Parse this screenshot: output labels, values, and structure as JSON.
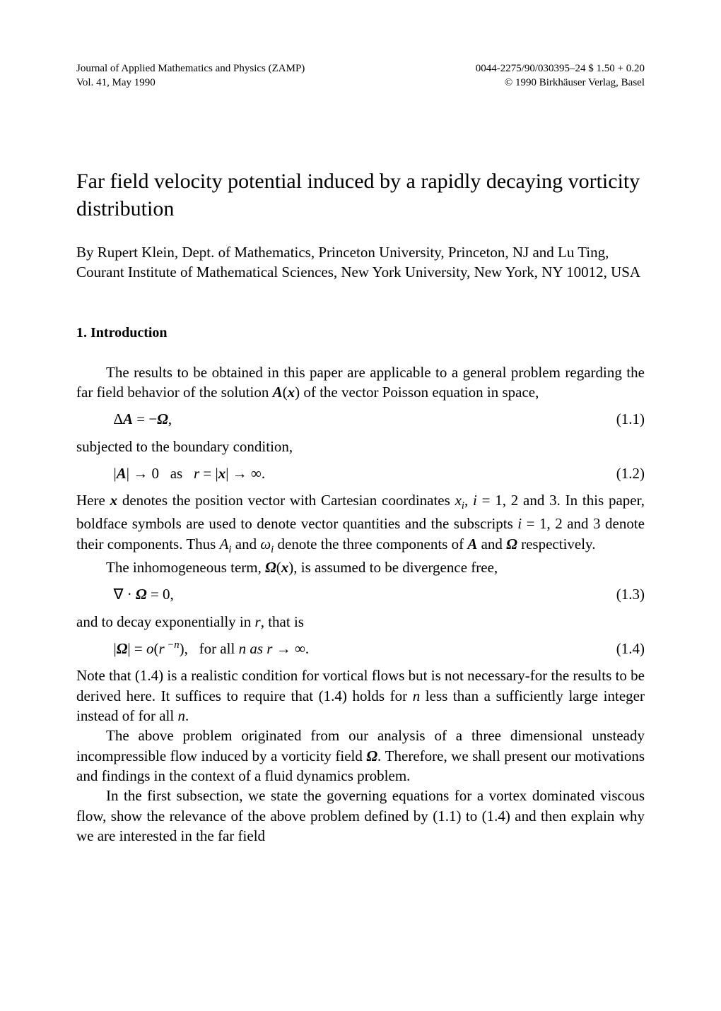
{
  "header": {
    "journal": "Journal of Applied Mathematics and Physics (ZAMP)",
    "vol": "Vol. 41, May 1990",
    "code": "0044-2275/90/030395–24 $ 1.50 + 0.20",
    "copyright": "© 1990 Birkhäuser Verlag, Basel"
  },
  "title": "Far field velocity potential induced by a rapidly decaying vorticity distribution",
  "authors": "By Rupert Klein, Dept. of Mathematics, Princeton University, Princeton, NJ and Lu Ting, Courant Institute of Mathematical Sciences, New York University, New York, NY 10012, USA",
  "section1_heading": "1.  Introduction",
  "para1_a": "The results to be obtained in this paper are applicable to a general problem regarding the far field behavior of the solution ",
  "para1_b": " of the vector Poisson equation in space,",
  "eq11_num": "(1.1)",
  "line_subjected": "subjected to the boundary condition,",
  "eq12_num": "(1.2)",
  "para2_a": "Here ",
  "para2_b": " denotes the position vector with Cartesian coordinates ",
  "para2_c": " = 1, 2 and 3. In this paper, boldface symbols are used to denote vector quantities and the subscripts ",
  "para2_d": " = 1, 2 and 3 denote their components. Thus ",
  "para2_e": " and ",
  "para2_f": " denote the three components of ",
  "para2_g": " and ",
  "para2_h": " respectively.",
  "para3_a": "The inhomogeneous term, ",
  "para3_b": ", is assumed to be divergence free,",
  "eq13_num": "(1.3)",
  "line_decay": "and to decay exponentially in ",
  "line_decay_r": "r",
  "line_decay_tail": ", that is",
  "eq14_tail": " as ",
  "eq14_num": "(1.4)",
  "para4": "Note that (1.4) is a realistic condition for vortical flows but is not necessary-for the results to be derived here. It suffices to require that (1.4) holds for ",
  "para4_n": "n",
  "para4_b": " less than a sufficiently large integer instead of for all ",
  "para4_n2": "n",
  "para4_c": ".",
  "para5_a": "The above problem originated from our analysis of a three dimensional unsteady incompressible flow induced by a vorticity field ",
  "para5_b": ". Therefore, we shall present our motivations and findings in the context of a fluid dynamics problem.",
  "para6": "In the first subsection, we state the governing equations for a vortex dominated viscous flow, show the relevance of the above problem defined by (1.1) to (1.4) and then explain why we are interested in the far field"
}
